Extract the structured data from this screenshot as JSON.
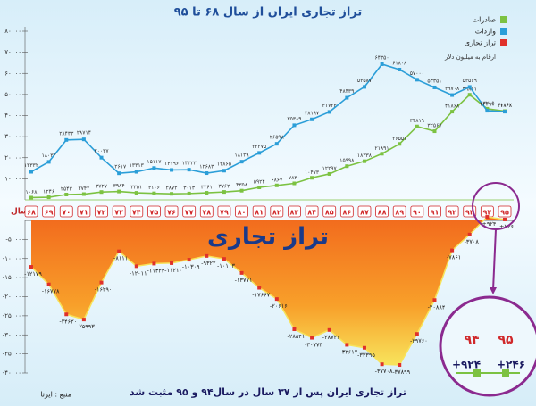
{
  "chart_data": {
    "type": "line",
    "title": "تراز تجاری ایران از سال ۶۸ تا ۹۵",
    "unit_note": "ارقام به میلیون دلار",
    "x_label": "سال",
    "watermark": "تراز تجاری",
    "caption": "تراز تجاری ایران پس از ۳۷ سال در سال۹۴ و ۹۵ مثبت شد",
    "source": "منبع : ایرنا",
    "categories": [
      "۶۸",
      "۶۹",
      "۷۰",
      "۷۱",
      "۷۲",
      "۷۳",
      "۷۴",
      "۷۵",
      "۷۶",
      "۷۷",
      "۷۸",
      "۷۹",
      "۸۰",
      "۸۱",
      "۸۲",
      "۸۳",
      "۸۴",
      "۸۵",
      "۸۶",
      "۸۷",
      "۸۸",
      "۸۹",
      "۹۰",
      "۹۱",
      "۹۲",
      "۹۳",
      "۹۴",
      "۹۵"
    ],
    "series": [
      {
        "name": "صادرات",
        "color": "#7cc242",
        "values": [
          1068,
          1246,
          2543,
          2742,
          3727,
          3984,
          3351,
          3106,
          2872,
          3013,
          3361,
          3762,
          4358,
          5924,
          6867,
          7830,
          10473,
          12297,
          15998,
          18338,
          21891,
          26551,
          34819,
          32567,
          41868,
          49861,
          43215,
          42108
        ],
        "value_labels": [
          "۱۰۶۸",
          "۱۲۴۶",
          "۲۵۴۳",
          "۲۷۴۲",
          "۳۷۲۷",
          "۳۹۸۴",
          "۳۳۵۱",
          "۳۱۰۶",
          "۲۸۷۲",
          "۳۰۱۳",
          "۳۳۶۱",
          "۳۷۶۲",
          "۴۳۵۸",
          "۵۹۲۴",
          "۶۸۶۷",
          "۷۸۳۰",
          "۱۰۴۷۳",
          "۱۲۲۹۷",
          "۱۵۹۹۸",
          "۱۸۳۳۸",
          "۲۱۸۹۱",
          "۲۶۵۵۱",
          "۳۴۸۱۹",
          "۳۲۵۶۷",
          "۴۱۸۶۸",
          "۴۹۸۶۱",
          "۴۳۲۱۵",
          "۴۲۱۰۸"
        ]
      },
      {
        "name": "واردات",
        "color": "#2b9ed8",
        "values": [
          13332,
          18032,
          28433,
          28714,
          20037,
          12617,
          13313,
          15117,
          14196,
          14323,
          12683,
          13865,
          18129,
          22275,
          26598,
          35389,
          38197,
          41723,
          48439,
          53587,
          64350,
          61808,
          57000,
          53351,
          49708,
          53569,
          42291,
          41862
        ],
        "value_labels": [
          "۱۳۳۳۲",
          "۱۸۰۳۲",
          "۲۸۴۳۳",
          "۲۸۷۱۴",
          "۲۰۰۳۷",
          "۱۲۶۱۷",
          "۱۳۳۱۳",
          "۱۵۱۱۷",
          "۱۴۱۹۶",
          "۱۴۳۲۳",
          "۱۲۶۸۳",
          "۱۳۸۶۵",
          "۱۸۱۲۹",
          "۲۲۲۷۵",
          "۲۶۵۹۸",
          "۳۵۳۸۹",
          "۳۸۱۹۷",
          "۴۱۷۲۳",
          "۴۸۴۳۹",
          "۵۳۵۸۷",
          "۶۴۳۵۰",
          "۶۱۸۰۸",
          "۵۷۰۰۰",
          "۵۳۳۵۱",
          "۴۹۷۰۸",
          "۵۳۵۶۹",
          "۴۲۲۹۱",
          "۴۱۸۶۲"
        ]
      },
      {
        "name": "تراز تجاری",
        "color": "#e0312a",
        "axis": "y2",
        "values": [
          -12179,
          -16778,
          -24620,
          -25993,
          -16290,
          -8111,
          -12011,
          -11323,
          -11210,
          -10309,
          -9322,
          -10103,
          -13771,
          -17667,
          -20616,
          -28541,
          -30773,
          -28726,
          -32617,
          -33395,
          -37708,
          -37899,
          -29760,
          -20884,
          -7861,
          -3708,
          924,
          246
        ],
        "value_labels": [
          "-۱۲۱۷۹",
          "-۱۶۷۷۸",
          "-۲۴۶۲۰",
          "-۲۵۹۹۳",
          "-۱۶۲۹۰",
          "-۸۱۱۱",
          "-۱۲۰۱۱",
          "-۱۱۳۲۳",
          "-۱۱۲۱۰",
          "-۱۰۳۰۹",
          "-۹۳۲۲",
          "-۱۰۱۰۳",
          "-۱۳۷۷۱",
          "-۱۷۶۶۷",
          "-۲۰۶۱۶",
          "-۲۸۵۴۱",
          "-۳۰۷۷۳",
          "-۲۸۷۲۶",
          "-۳۲۶۱۷",
          "-۳۳۳۹۵",
          "-۳۷۷۰۸",
          "-۳۷۸۹۹",
          "-۲۹۷۶۰",
          "-۲۰۸۸۴",
          "-۷۸۶۱",
          "-۳۷۰۸",
          "+۹۲۴",
          "+۲۴۶"
        ]
      }
    ],
    "ylim": [
      0,
      80000
    ],
    "yticks": [
      {
        "value": 10000,
        "label": "۱۰۰۰۰"
      },
      {
        "value": 20000,
        "label": "۲۰۰۰۰"
      },
      {
        "value": 30000,
        "label": "۳۰۰۰۰"
      },
      {
        "value": 40000,
        "label": "۴۰۰۰۰"
      },
      {
        "value": 50000,
        "label": "۵۰۰۰۰"
      },
      {
        "value": 60000,
        "label": "۶۰۰۰۰"
      },
      {
        "value": 70000,
        "label": "۷۰۰۰۰"
      },
      {
        "value": 80000,
        "label": "۸۰۰۰۰"
      }
    ],
    "y2lim": [
      -40000,
      0
    ],
    "y2ticks": [
      {
        "value": -5000,
        "label": "-۵۰۰۰"
      },
      {
        "value": -10000,
        "label": "-۱۰۰۰۰"
      },
      {
        "value": -15000,
        "label": "-۱۵۰۰۰"
      },
      {
        "value": -20000,
        "label": "-۲۰۰۰۰"
      },
      {
        "value": -25000,
        "label": "-۲۵۰۰۰"
      },
      {
        "value": -30000,
        "label": "-۳۰۰۰۰"
      },
      {
        "value": -35000,
        "label": "-۳۵۰۰۰"
      },
      {
        "value": -40000,
        "label": "-۴۰۰۰۰"
      }
    ],
    "grid": false
  }
}
